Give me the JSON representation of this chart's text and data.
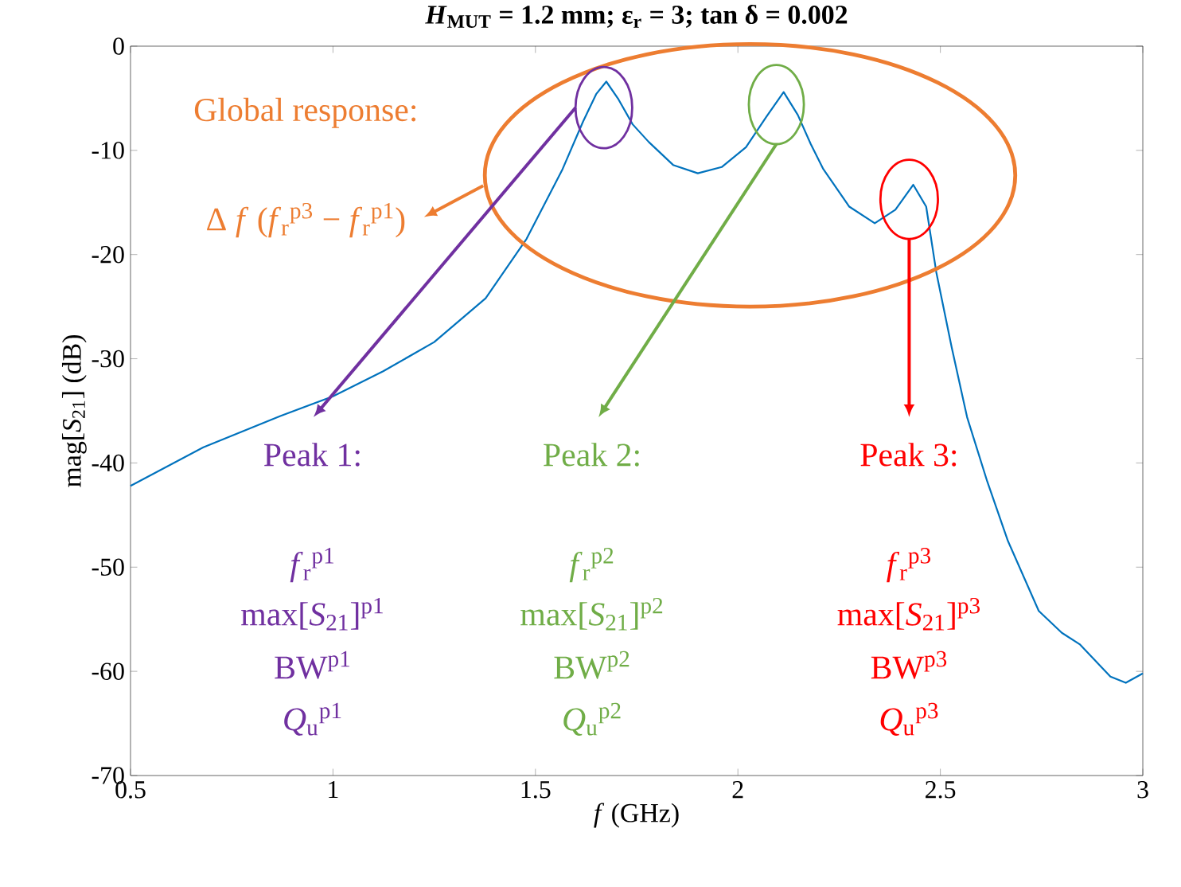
{
  "chart_data": {
    "type": "line",
    "title": "*H*$_{MUT}$ = 1.2 mm; ε$_{r}$ = 3; tan δ = 0.002",
    "xlabel": "*f* (GHz)",
    "ylabel": "mag[*S*$_{21}$] (dB)",
    "xlim": [
      0.5,
      3
    ],
    "ylim": [
      -70,
      0
    ],
    "xticks": [
      0.5,
      1,
      1.5,
      2,
      2.5,
      3
    ],
    "yticks": [
      -70,
      -60,
      -50,
      -40,
      -30,
      -20,
      -10,
      0
    ],
    "x": [
      0.5,
      0.68,
      0.87,
      1.0,
      1.124,
      1.25,
      1.377,
      1.478,
      1.567,
      1.618,
      1.65,
      1.675,
      1.705,
      1.74,
      1.78,
      1.84,
      1.901,
      1.96,
      2.02,
      2.07,
      2.113,
      2.148,
      2.18,
      2.211,
      2.275,
      2.338,
      2.389,
      2.433,
      2.465,
      2.49,
      2.528,
      2.566,
      2.616,
      2.667,
      2.743,
      2.8,
      2.844,
      2.92,
      2.958,
      3.0
    ],
    "series": [
      {
        "color": "#0072bd",
        "values": [
          -42.2,
          -38.5,
          -35.5,
          -33.6,
          -31.2,
          -28.4,
          -24.2,
          -18.5,
          -11.8,
          -7.2,
          -4.6,
          -3.4,
          -5.1,
          -7.5,
          -9.2,
          -11.4,
          -12.2,
          -11.6,
          -9.7,
          -6.8,
          -4.4,
          -6.6,
          -9.4,
          -11.8,
          -15.4,
          -17.0,
          -15.7,
          -13.3,
          -15.4,
          -21.7,
          -28.9,
          -35.6,
          -41.8,
          -47.5,
          -54.2,
          -56.3,
          -57.4,
          -60.5,
          -61.1,
          -60.2
        ]
      }
    ],
    "annotations": [
      "Global  response:",
      "Δ *f* (*f*$_{r}$$^{p3}$ − *f*$_{r}$$^{p1}$)",
      "Peak 1:",
      "*f*$_{r}$$^{p1}$",
      "max[*S*$_{21}$]$^{p1}$",
      "BW$^{p1}$",
      "*Q*$_{u}$$^{p1}$",
      "Peak 2:",
      "*f*$_{r}$$^{p2}$",
      "max[*S*$_{21}$]$^{p2}$",
      "BW$^{p2}$",
      "*Q*$_{u}$$^{p2}$",
      "Peak 3:",
      "*f*$_{r}$$^{p3}$",
      "max[*S*$_{21}$]$^{p3}$",
      "BW$^{p3}$",
      "*Q*$_{u}$$^{p3}$"
    ]
  }
}
